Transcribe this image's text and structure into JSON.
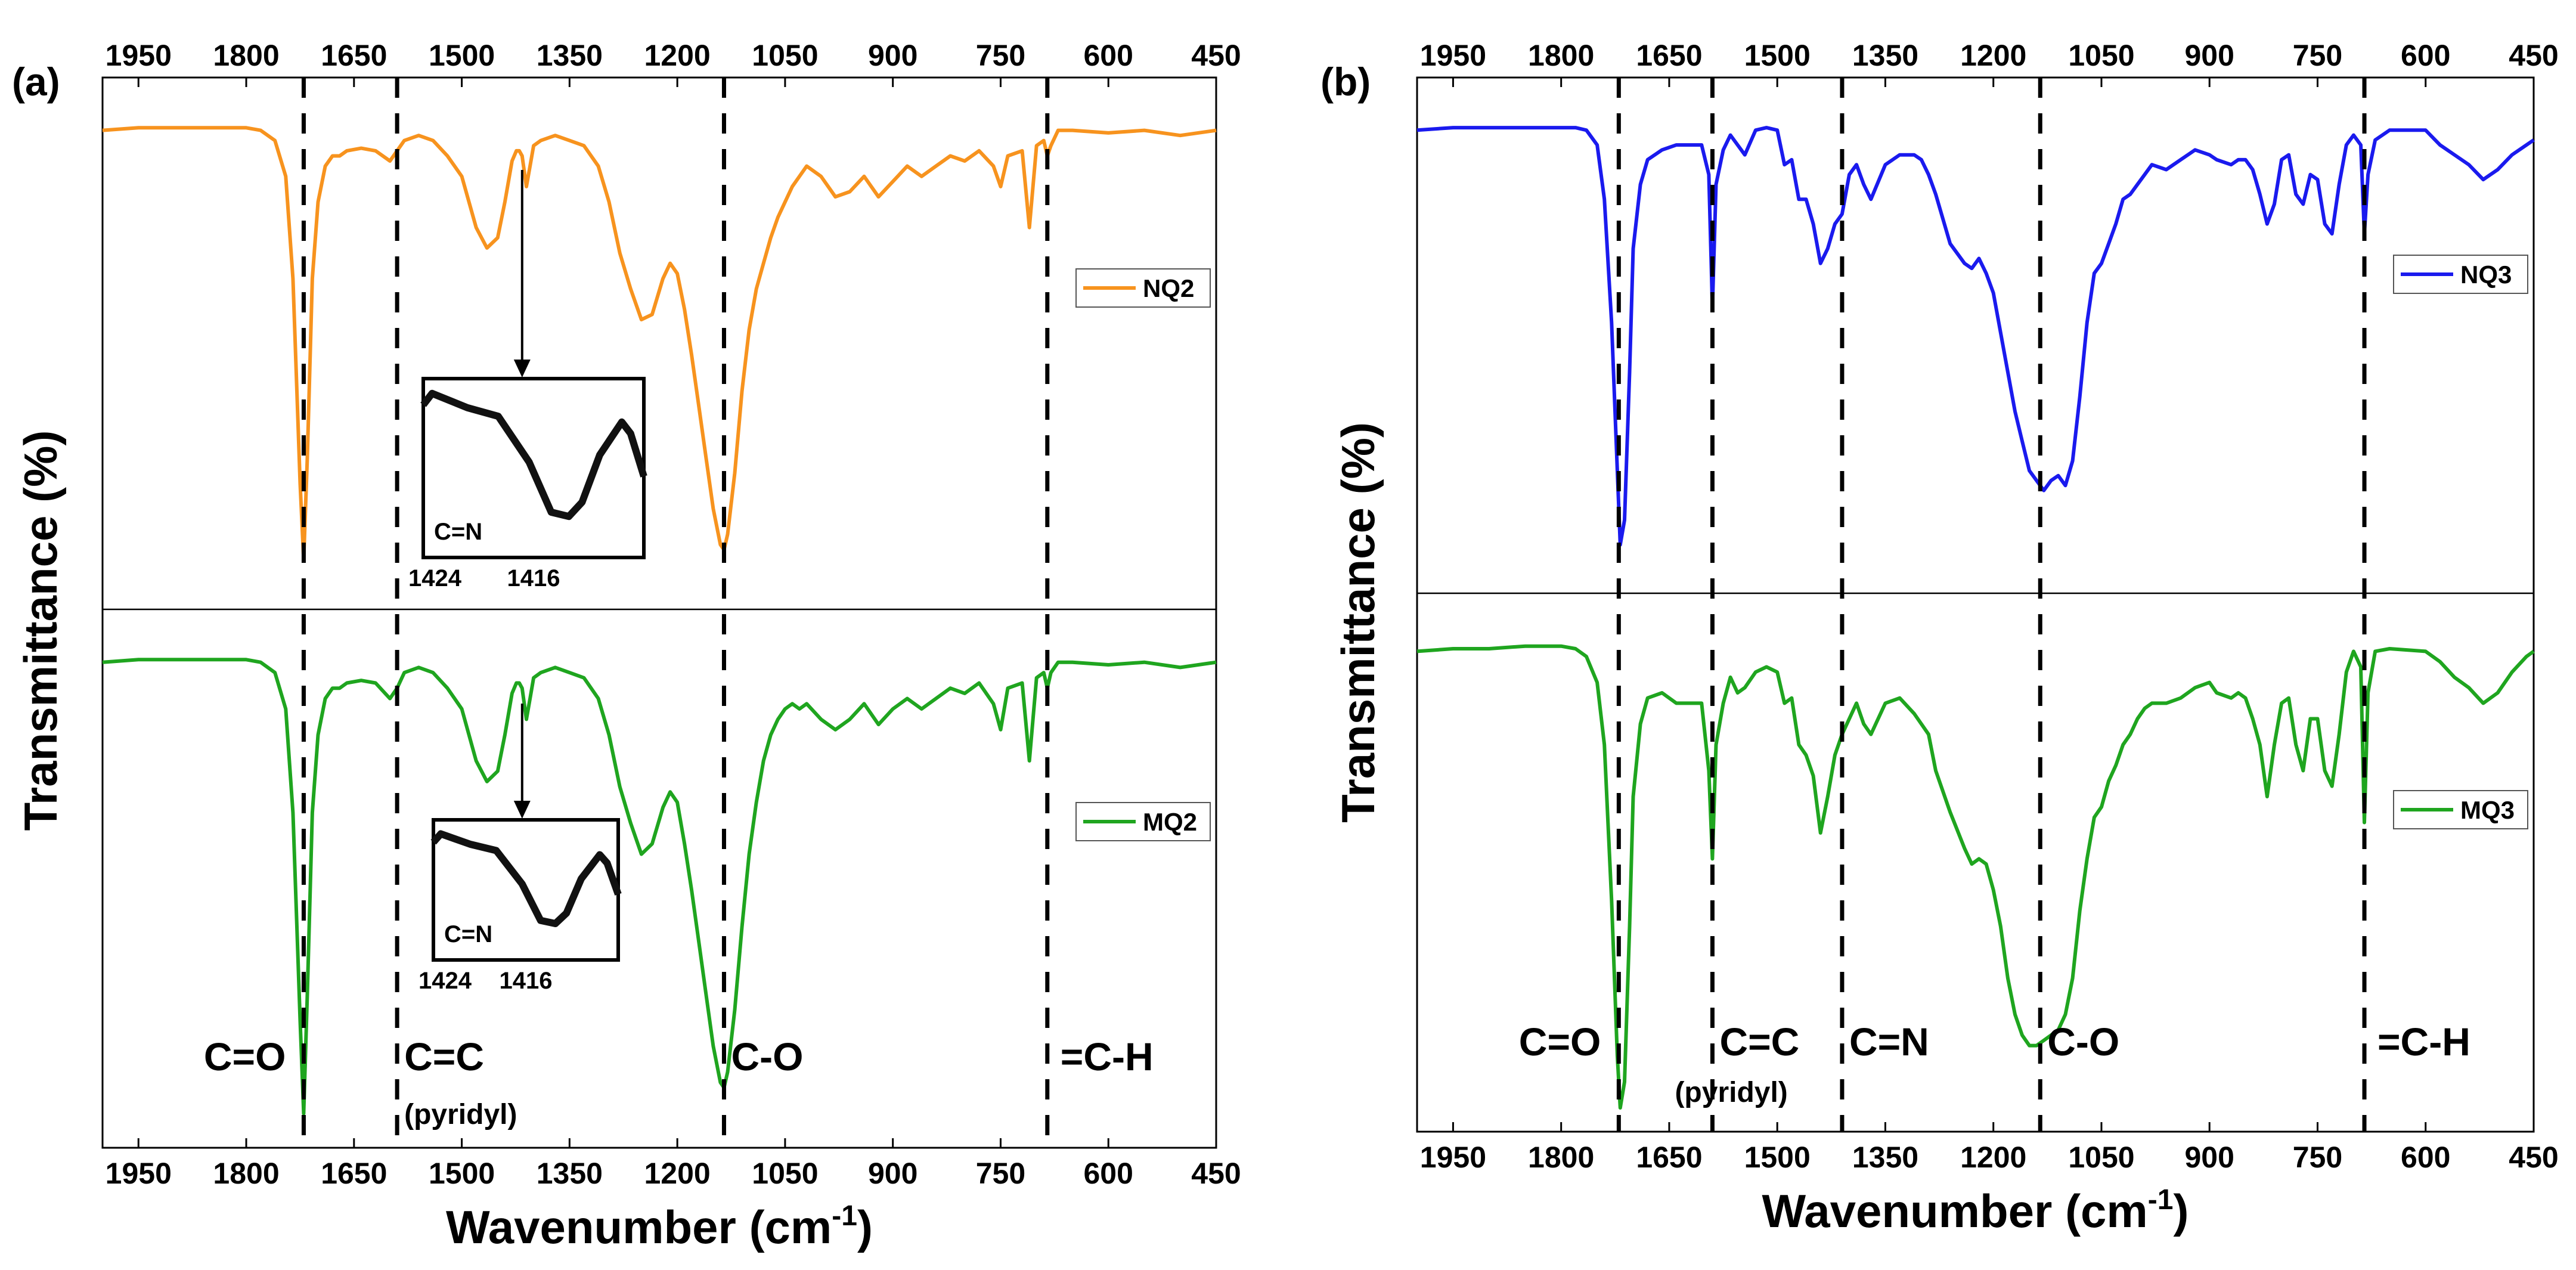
{
  "chart_data": [
    {
      "type": "line",
      "panel_label": "(a)",
      "xlabel": "Wavenumber (cm",
      "xlabel_sup": "-1",
      "xlabel_close": ")",
      "ylabel": "Transmittance (%)",
      "xlim": [
        2000,
        450
      ],
      "x_reversed": true,
      "xticks": [
        "1950",
        "1800",
        "1650",
        "1500",
        "1350",
        "1200",
        "1050",
        "900",
        "750",
        "600",
        "450"
      ],
      "xtick_values": [
        1950,
        1800,
        1650,
        1500,
        1350,
        1200,
        1050,
        900,
        750,
        600,
        450
      ],
      "vlines": [
        1720,
        1590,
        1135,
        685
      ],
      "annotations": [
        {
          "label": "C=O",
          "x": 1720
        },
        {
          "label": "C=C",
          "sub": "(pyridyl)",
          "x": 1590
        },
        {
          "label": "C-O",
          "x": 1135
        },
        {
          "label": "=C-H",
          "x": 685
        }
      ],
      "series": [
        {
          "name": "NQ2",
          "color": "#f7931e",
          "x": [
            2000,
            1950,
            1900,
            1850,
            1800,
            1780,
            1760,
            1745,
            1735,
            1725,
            1720,
            1715,
            1708,
            1700,
            1690,
            1680,
            1670,
            1660,
            1640,
            1620,
            1600,
            1590,
            1580,
            1560,
            1540,
            1520,
            1500,
            1480,
            1465,
            1450,
            1440,
            1430,
            1424,
            1420,
            1416,
            1410,
            1405,
            1400,
            1390,
            1370,
            1350,
            1330,
            1310,
            1295,
            1280,
            1265,
            1250,
            1235,
            1220,
            1210,
            1200,
            1190,
            1180,
            1170,
            1160,
            1150,
            1140,
            1135,
            1130,
            1120,
            1110,
            1100,
            1090,
            1080,
            1070,
            1060,
            1050,
            1040,
            1030,
            1020,
            1000,
            980,
            960,
            940,
            920,
            900,
            880,
            860,
            840,
            820,
            800,
            780,
            760,
            750,
            740,
            720,
            710,
            700,
            690,
            685,
            680,
            670,
            650,
            600,
            550,
            500,
            450
          ],
          "y": [
            99,
            99.5,
            99.5,
            99.5,
            99.5,
            99,
            97,
            90,
            70,
            30,
            15,
            35,
            70,
            85,
            92,
            94,
            94,
            95,
            95.5,
            95,
            93,
            95,
            97,
            98,
            97,
            94,
            90,
            80,
            76,
            78,
            85,
            93,
            95,
            95,
            94,
            88,
            92,
            96,
            97,
            98,
            97,
            96,
            92,
            85,
            75,
            68,
            62,
            63,
            70,
            73,
            71,
            64,
            55,
            45,
            35,
            25,
            18,
            17,
            20,
            32,
            48,
            60,
            68,
            73,
            78,
            82,
            85,
            88,
            90,
            92,
            90,
            86,
            87,
            90,
            86,
            89,
            92,
            90,
            92,
            94,
            93,
            95,
            92,
            88,
            94,
            95,
            80,
            96,
            97,
            94,
            96,
            99,
            99,
            98.5,
            99,
            98,
            99
          ]
        },
        {
          "name": "MQ2",
          "color": "#1fa51f",
          "x": [
            2000,
            1950,
            1900,
            1850,
            1800,
            1780,
            1760,
            1745,
            1735,
            1725,
            1720,
            1715,
            1708,
            1700,
            1690,
            1680,
            1670,
            1660,
            1640,
            1620,
            1600,
            1590,
            1580,
            1560,
            1540,
            1520,
            1500,
            1480,
            1465,
            1450,
            1440,
            1430,
            1424,
            1420,
            1416,
            1410,
            1405,
            1400,
            1390,
            1370,
            1350,
            1330,
            1310,
            1295,
            1280,
            1265,
            1250,
            1235,
            1220,
            1210,
            1200,
            1190,
            1180,
            1170,
            1160,
            1150,
            1140,
            1135,
            1130,
            1120,
            1110,
            1100,
            1090,
            1080,
            1070,
            1060,
            1050,
            1040,
            1030,
            1020,
            1000,
            980,
            960,
            940,
            920,
            900,
            880,
            860,
            840,
            820,
            800,
            780,
            760,
            750,
            740,
            720,
            710,
            700,
            690,
            685,
            680,
            670,
            650,
            600,
            550,
            500,
            450
          ],
          "y": [
            99,
            99.5,
            99.5,
            99.5,
            99.5,
            99,
            97,
            90,
            70,
            30,
            12,
            35,
            70,
            85,
            92,
            94,
            94,
            95,
            95.5,
            95,
            92,
            94,
            97,
            98,
            97,
            94,
            90,
            80,
            76,
            78,
            85,
            93,
            95,
            95,
            94,
            88,
            92,
            96,
            97,
            98,
            97,
            96,
            92,
            85,
            75,
            68,
            62,
            64,
            71,
            74,
            72,
            64,
            55,
            45,
            35,
            25,
            18,
            17,
            20,
            32,
            48,
            62,
            72,
            80,
            85,
            88,
            90,
            91,
            90,
            91,
            88,
            86,
            88,
            91,
            87,
            90,
            92,
            90,
            92,
            94,
            93,
            95,
            91,
            86,
            94,
            95,
            80,
            96,
            97,
            94,
            97,
            99,
            99,
            98.5,
            99,
            98,
            99
          ]
        }
      ],
      "insets": [
        {
          "label": "C=N",
          "tick_left": "1424",
          "tick_right": "1416",
          "for_series": "NQ2"
        },
        {
          "label": "C=N",
          "tick_left": "1424",
          "tick_right": "1416",
          "for_series": "MQ2"
        }
      ]
    },
    {
      "type": "line",
      "panel_label": "(b)",
      "xlabel": "Wavenumber (cm",
      "xlabel_sup": "-1",
      "xlabel_close": ")",
      "ylabel": "Transmittance (%)",
      "xlim": [
        2000,
        450
      ],
      "x_reversed": true,
      "xticks": [
        "1950",
        "1800",
        "1650",
        "1500",
        "1350",
        "1200",
        "1050",
        "900",
        "750",
        "600",
        "450"
      ],
      "xtick_values": [
        1950,
        1800,
        1650,
        1500,
        1350,
        1200,
        1050,
        900,
        750,
        600,
        450
      ],
      "vlines": [
        1720,
        1590,
        1410,
        1135,
        685
      ],
      "annotations": [
        {
          "label": "C=O",
          "x": 1720
        },
        {
          "label": "C=C",
          "sub": "(pyridyl)",
          "x": 1590
        },
        {
          "label": "C=N",
          "x": 1410
        },
        {
          "label": "C-O",
          "x": 1135
        },
        {
          "label": "=C-H",
          "x": 685
        }
      ],
      "series": [
        {
          "name": "NQ3",
          "color": "#1a1aee",
          "x": [
            2000,
            1950,
            1900,
            1850,
            1800,
            1780,
            1765,
            1750,
            1740,
            1730,
            1722,
            1718,
            1712,
            1705,
            1700,
            1690,
            1680,
            1660,
            1640,
            1620,
            1605,
            1595,
            1590,
            1585,
            1575,
            1565,
            1555,
            1545,
            1530,
            1515,
            1500,
            1490,
            1480,
            1470,
            1460,
            1450,
            1440,
            1430,
            1420,
            1410,
            1400,
            1390,
            1380,
            1370,
            1350,
            1330,
            1310,
            1300,
            1290,
            1280,
            1260,
            1240,
            1230,
            1220,
            1210,
            1200,
            1190,
            1180,
            1170,
            1160,
            1150,
            1140,
            1130,
            1120,
            1110,
            1100,
            1090,
            1080,
            1070,
            1060,
            1050,
            1040,
            1030,
            1020,
            1010,
            1000,
            990,
            980,
            960,
            940,
            920,
            900,
            890,
            870,
            860,
            850,
            840,
            830,
            820,
            810,
            800,
            790,
            780,
            770,
            760,
            750,
            740,
            730,
            720,
            710,
            700,
            690,
            685,
            680,
            670,
            650,
            600,
            580,
            560,
            540,
            520,
            500,
            480,
            460,
            450
          ],
          "y": [
            99,
            99.5,
            99.5,
            99.5,
            99.5,
            99.5,
            99,
            96,
            85,
            60,
            30,
            15,
            20,
            50,
            75,
            88,
            93,
            95,
            96,
            96,
            96,
            90,
            63,
            88,
            95,
            98,
            96,
            94,
            99,
            99.5,
            99,
            92,
            93,
            85,
            85,
            80,
            72,
            75,
            80,
            82,
            90,
            92,
            88,
            85,
            92,
            94,
            94,
            93,
            90,
            86,
            76,
            72,
            71,
            73,
            70,
            66,
            58,
            50,
            42,
            36,
            30,
            28,
            26,
            28,
            29,
            27,
            32,
            45,
            60,
            70,
            72,
            76,
            80,
            85,
            86,
            88,
            90,
            92,
            91,
            93,
            95,
            94,
            93,
            92,
            93,
            93,
            91,
            86,
            80,
            84,
            93,
            94,
            86,
            84,
            90,
            89,
            80,
            78,
            88,
            96,
            98,
            96,
            78,
            90,
            97,
            99,
            99,
            96,
            94,
            92,
            89,
            91,
            94,
            96,
            97
          ]
        },
        {
          "name": "MQ3",
          "color": "#1fa51f",
          "x": [
            2000,
            1950,
            1900,
            1850,
            1800,
            1780,
            1765,
            1750,
            1740,
            1730,
            1722,
            1718,
            1712,
            1705,
            1700,
            1690,
            1680,
            1660,
            1640,
            1620,
            1605,
            1595,
            1590,
            1585,
            1575,
            1565,
            1555,
            1545,
            1530,
            1515,
            1500,
            1490,
            1480,
            1470,
            1460,
            1450,
            1440,
            1430,
            1420,
            1410,
            1400,
            1390,
            1380,
            1370,
            1350,
            1330,
            1310,
            1300,
            1290,
            1280,
            1260,
            1240,
            1230,
            1220,
            1210,
            1200,
            1190,
            1180,
            1170,
            1160,
            1150,
            1140,
            1130,
            1120,
            1110,
            1100,
            1090,
            1080,
            1070,
            1060,
            1050,
            1040,
            1030,
            1020,
            1010,
            1000,
            990,
            980,
            960,
            940,
            920,
            900,
            890,
            870,
            860,
            850,
            840,
            830,
            820,
            810,
            800,
            790,
            780,
            770,
            760,
            750,
            740,
            730,
            720,
            710,
            700,
            690,
            685,
            680,
            670,
            650,
            600,
            580,
            560,
            540,
            520,
            500,
            480,
            460,
            450
          ],
          "y": [
            98,
            98.5,
            98.5,
            99,
            99,
            98.5,
            97,
            92,
            80,
            50,
            20,
            10,
            15,
            45,
            70,
            84,
            89,
            90,
            88,
            88,
            88,
            75,
            58,
            80,
            88,
            93,
            90,
            91,
            94,
            95,
            94,
            88,
            89,
            80,
            78,
            74,
            63,
            70,
            78,
            82,
            85,
            88,
            84,
            82,
            88,
            89,
            86,
            84,
            82,
            75,
            67,
            60,
            57,
            58,
            57,
            52,
            45,
            35,
            28,
            24,
            22,
            22,
            23,
            24,
            25,
            28,
            35,
            48,
            58,
            66,
            68,
            73,
            76,
            80,
            82,
            85,
            87,
            88,
            88,
            89,
            91,
            92,
            90,
            89,
            90,
            89,
            85,
            80,
            70,
            80,
            88,
            89,
            80,
            75,
            85,
            85,
            75,
            72,
            82,
            94,
            98,
            95,
            65,
            90,
            98,
            98.5,
            98,
            96,
            93,
            91,
            88,
            90,
            94,
            97,
            98
          ]
        }
      ],
      "insets": []
    }
  ]
}
